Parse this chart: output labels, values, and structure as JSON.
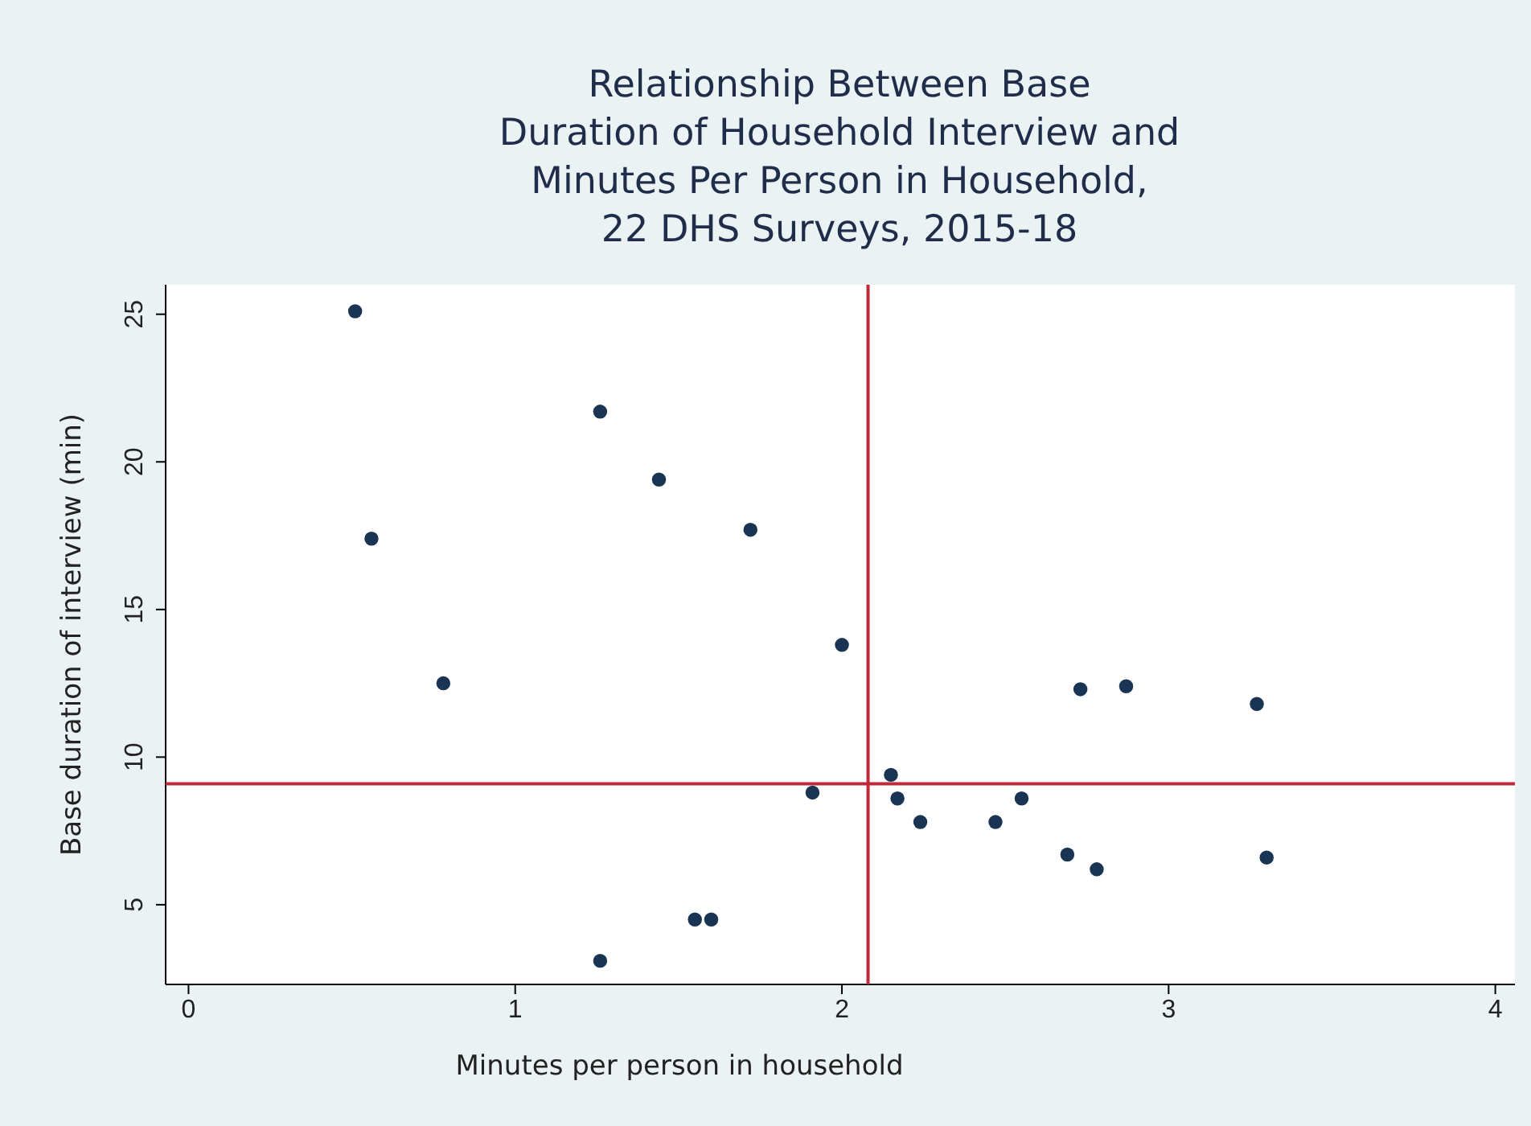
{
  "chart_data": {
    "type": "scatter",
    "title": "Relationship Between Base\nDuration of Household Interview and\nMinutes Per Person in Household,\n22 DHS Surveys, 2015-18",
    "xlabel": "Minutes per person in household",
    "ylabel": "Base duration of interview (min)",
    "x": [
      0.51,
      0.56,
      0.78,
      1.26,
      1.44,
      1.72,
      2.0,
      1.91,
      1.26,
      1.55,
      1.6,
      2.15,
      2.17,
      2.24,
      2.47,
      2.55,
      2.73,
      2.87,
      2.69,
      2.78,
      3.27,
      3.3
    ],
    "series": [
      {
        "color": "#1a3553",
        "values": [
          25.1,
          17.4,
          12.5,
          21.7,
          19.4,
          17.7,
          13.8,
          8.8,
          3.1,
          4.5,
          4.5,
          9.4,
          8.6,
          7.8,
          7.8,
          8.6,
          12.3,
          12.4,
          6.7,
          6.2,
          11.8,
          6.6
        ]
      }
    ],
    "xlim": [
      -0.07,
      4.06
    ],
    "ylim": [
      2.3,
      26
    ],
    "xticks": [
      0,
      1,
      2,
      3,
      4
    ],
    "yticks": [
      5,
      10,
      15,
      20,
      25
    ],
    "grid": false,
    "marker": "circle",
    "ref_lines": [
      {
        "axis": "x",
        "value": 2.08,
        "color": "#c0283c"
      },
      {
        "axis": "y",
        "value": 9.1,
        "color": "#c0283c"
      }
    ]
  }
}
